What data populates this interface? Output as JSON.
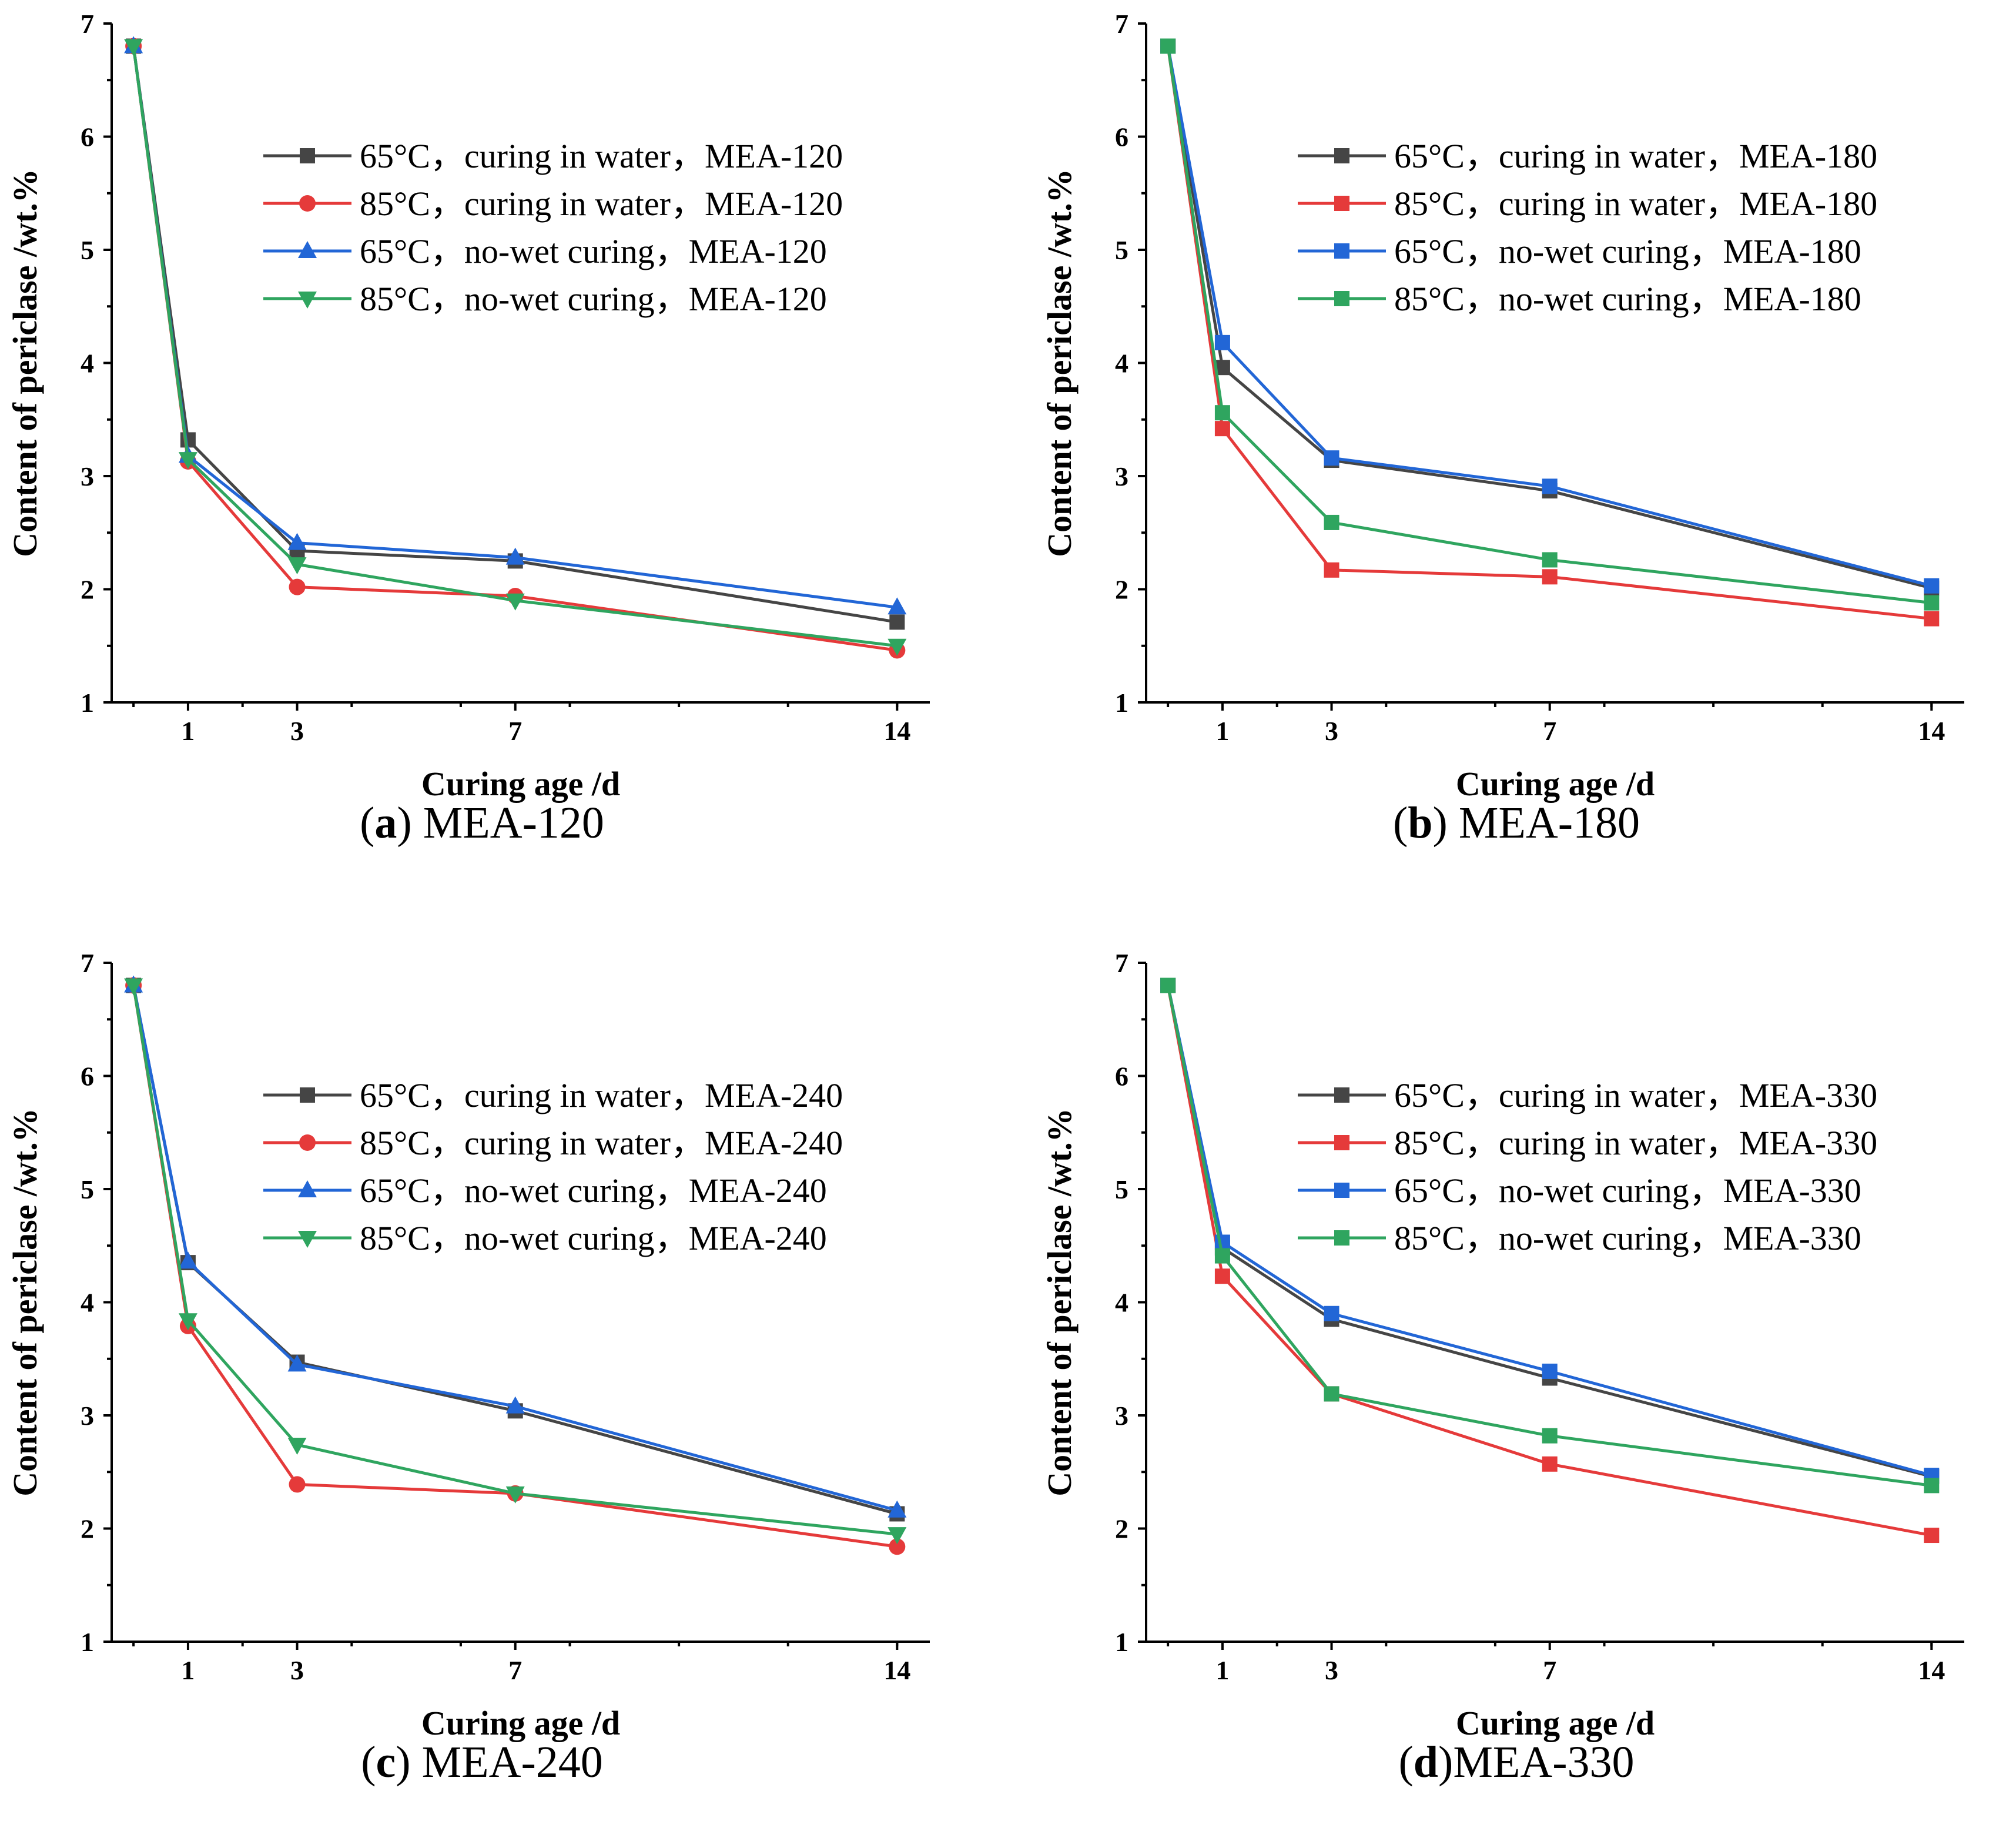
{
  "colors": {
    "black": "#454545",
    "red": "#e53a3a",
    "blue": "#2266d6",
    "green": "#2fa55f"
  },
  "chart_data": [
    {
      "type": "line",
      "caption_label": "a",
      "caption_text": " MEA-120",
      "xlabel": "Curing age /d",
      "ylabel": "Content of periclase /wt.%",
      "xlim": [
        -0.4,
        14.6
      ],
      "ylim": [
        1,
        7
      ],
      "xticks": [
        1,
        3,
        7,
        14
      ],
      "yticks": [
        1,
        2,
        3,
        4,
        5,
        6,
        7
      ],
      "series": [
        {
          "name": "65°C，curing in water，MEA-120",
          "color": "black",
          "marker": "square",
          "x": [
            0,
            1,
            3,
            7,
            14
          ],
          "y": [
            6.8,
            3.32,
            2.34,
            2.25,
            1.71
          ]
        },
        {
          "name": "85°C，curing in water，MEA-120",
          "color": "red",
          "marker": "circle",
          "x": [
            0,
            1,
            3,
            7,
            14
          ],
          "y": [
            6.8,
            3.13,
            2.02,
            1.94,
            1.46
          ]
        },
        {
          "name": "65°C，no-wet curing，MEA-120",
          "color": "blue",
          "marker": "triangle-up",
          "x": [
            0,
            1,
            3,
            7,
            14
          ],
          "y": [
            6.8,
            3.18,
            2.41,
            2.28,
            1.84
          ]
        },
        {
          "name": "85°C，no-wet curing，MEA-120",
          "color": "green",
          "marker": "triangle-down",
          "x": [
            0,
            1,
            3,
            7,
            14
          ],
          "y": [
            6.8,
            3.15,
            2.22,
            1.9,
            1.5
          ]
        }
      ]
    },
    {
      "type": "line",
      "caption_label": "b",
      "caption_text": " MEA-180",
      "xlabel": "Curing age /d",
      "ylabel": "Content of periclase /wt.%",
      "xlim": [
        -0.4,
        14.6
      ],
      "ylim": [
        1,
        7
      ],
      "xticks": [
        1,
        3,
        7,
        14
      ],
      "yticks": [
        1,
        2,
        3,
        4,
        5,
        6,
        7
      ],
      "series": [
        {
          "name": "65°C，curing in water，MEA-180",
          "color": "black",
          "marker": "square",
          "x": [
            0,
            1,
            3,
            7,
            14
          ],
          "y": [
            6.8,
            3.96,
            3.14,
            2.87,
            2.01
          ]
        },
        {
          "name": "85°C，curing in water，MEA-180",
          "color": "red",
          "marker": "square",
          "x": [
            0,
            1,
            3,
            7,
            14
          ],
          "y": [
            6.8,
            3.42,
            2.17,
            2.11,
            1.74
          ]
        },
        {
          "name": "65°C，no-wet curing，MEA-180",
          "color": "blue",
          "marker": "square",
          "x": [
            0,
            1,
            3,
            7,
            14
          ],
          "y": [
            6.8,
            4.18,
            3.16,
            2.91,
            2.03
          ]
        },
        {
          "name": "85°C，no-wet curing，MEA-180",
          "color": "green",
          "marker": "square",
          "x": [
            0,
            1,
            3,
            7,
            14
          ],
          "y": [
            6.8,
            3.56,
            2.59,
            2.26,
            1.88
          ]
        }
      ]
    },
    {
      "type": "line",
      "caption_label": "c",
      "caption_text": " MEA-240",
      "xlabel": "Curing age /d",
      "ylabel": "Content of periclase /wt.%",
      "xlim": [
        -0.4,
        14.6
      ],
      "ylim": [
        1,
        7
      ],
      "xticks": [
        1,
        3,
        7,
        14
      ],
      "yticks": [
        1,
        2,
        3,
        4,
        5,
        6,
        7
      ],
      "series": [
        {
          "name": "65°C，curing in water，MEA-240",
          "color": "black",
          "marker": "square",
          "x": [
            0,
            1,
            3,
            7,
            14
          ],
          "y": [
            6.8,
            4.35,
            3.47,
            3.04,
            2.13
          ]
        },
        {
          "name": "85°C，curing in water，MEA-240",
          "color": "red",
          "marker": "circle",
          "x": [
            0,
            1,
            3,
            7,
            14
          ],
          "y": [
            6.8,
            3.79,
            2.39,
            2.31,
            1.84
          ]
        },
        {
          "name": "65°C，no-wet curing，MEA-240",
          "color": "blue",
          "marker": "triangle-up",
          "x": [
            0,
            1,
            3,
            7,
            14
          ],
          "y": [
            6.8,
            4.36,
            3.45,
            3.08,
            2.16
          ]
        },
        {
          "name": "85°C，no-wet curing，MEA-240",
          "color": "green",
          "marker": "triangle-down",
          "x": [
            0,
            1,
            3,
            7,
            14
          ],
          "y": [
            6.8,
            3.84,
            2.74,
            2.31,
            1.95
          ]
        }
      ]
    },
    {
      "type": "line",
      "caption_label": "d",
      "caption_text": "MEA-330",
      "xlabel": "Curing age /d",
      "ylabel": "Content of periclase /wt.%",
      "xlim": [
        -0.4,
        14.6
      ],
      "ylim": [
        1,
        7
      ],
      "xticks": [
        1,
        3,
        7,
        14
      ],
      "yticks": [
        1,
        2,
        3,
        4,
        5,
        6,
        7
      ],
      "series": [
        {
          "name": "65°C，curing in water，MEA-330",
          "color": "black",
          "marker": "square",
          "x": [
            0,
            1,
            3,
            7,
            14
          ],
          "y": [
            6.8,
            4.48,
            3.85,
            3.33,
            2.46
          ]
        },
        {
          "name": "85°C，curing in water，MEA-330",
          "color": "red",
          "marker": "square",
          "x": [
            0,
            1,
            3,
            7,
            14
          ],
          "y": [
            6.8,
            4.23,
            3.19,
            2.57,
            1.94
          ]
        },
        {
          "name": "65°C，no-wet curing，MEA-330",
          "color": "blue",
          "marker": "square",
          "x": [
            0,
            1,
            3,
            7,
            14
          ],
          "y": [
            6.8,
            4.53,
            3.9,
            3.39,
            2.47
          ]
        },
        {
          "name": "85°C，no-wet curing，MEA-330",
          "color": "green",
          "marker": "square",
          "x": [
            0,
            1,
            3,
            7,
            14
          ],
          "y": [
            6.8,
            4.41,
            3.19,
            2.82,
            2.38
          ]
        }
      ]
    }
  ]
}
